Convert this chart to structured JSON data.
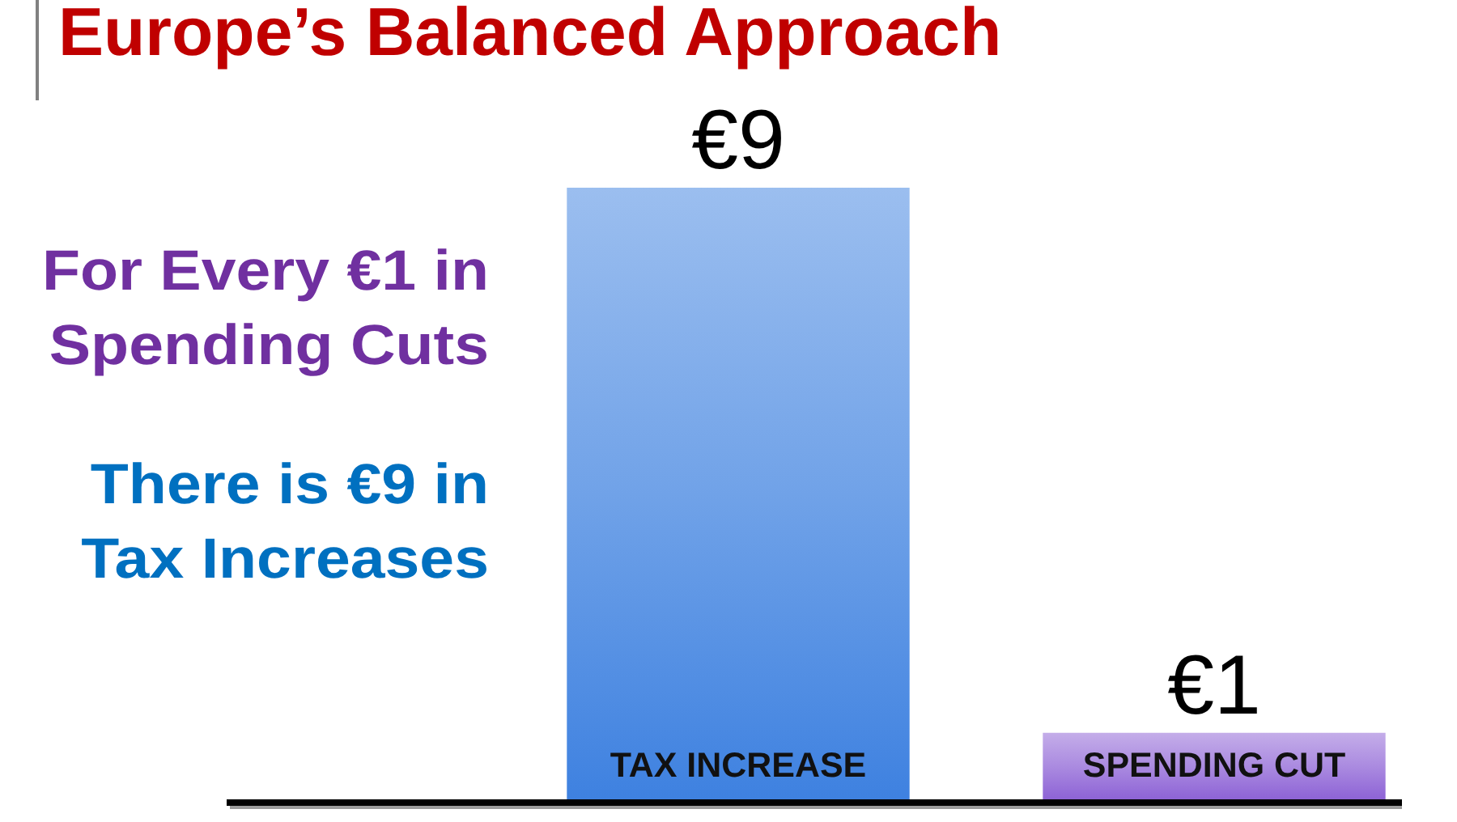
{
  "chart_data": {
    "type": "bar",
    "title": "Europe’s Balanced Approach",
    "categories": [
      "TAX INCREASE",
      "SPENDING CUT"
    ],
    "values": [
      9,
      1
    ],
    "colors": [
      "#70a2e8",
      "#aa8ae0"
    ],
    "value_labels": [
      "€9",
      "€1"
    ],
    "annotations": [
      "For Every €1 in Spending Cuts",
      "There is €9 in Tax Increases"
    ],
    "tick_labels": "x"
  }
}
